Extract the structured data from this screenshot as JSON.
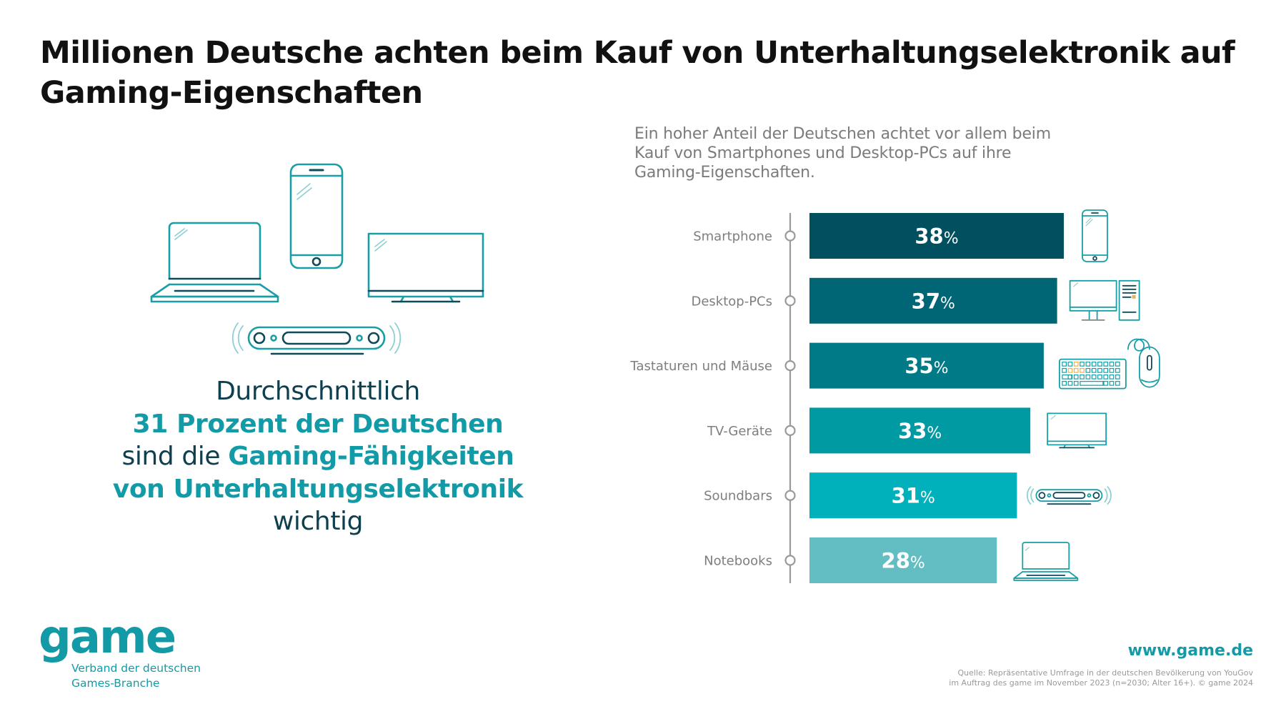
{
  "title": "Millionen Deutsche achten beim Kauf von Unterhaltungselektronik auf Gaming-Eigenschaften",
  "subtitle": "Ein hoher Anteil der Deutschen achtet vor allem beim Kauf von Smartphones und Desktop-PCs auf ihre Gaming-Eigenschaften.",
  "highlight": {
    "line1": "Durchschnittlich",
    "line2": "31 Prozent der Deutschen",
    "line3_plain": "sind die ",
    "line3_accent": "Gaming-Fähigkeiten",
    "line4": "von Unterhaltungselektronik",
    "line5": "wichtig"
  },
  "left_icons": [
    "laptop-icon",
    "smartphone-icon",
    "tv-icon",
    "soundbar-icon"
  ],
  "chart_data": {
    "type": "bar",
    "orientation": "horizontal",
    "title": "Ein hoher Anteil der Deutschen achtet vor allem beim Kauf von Smartphones und Desktop-PCs auf ihre Gaming-Eigenschaften.",
    "categories": [
      "Smartphone",
      "Desktop-PCs",
      "Tastaturen und Mäuse",
      "TV-Geräte",
      "Soundbars",
      "Notebooks"
    ],
    "values": [
      38,
      37,
      35,
      33,
      31,
      28
    ],
    "unit": "%",
    "xlabel": "",
    "ylabel": "",
    "xlim": [
      0,
      38
    ],
    "grid": false,
    "legend": "none",
    "colors": [
      "#00505f",
      "#006575",
      "#007a86",
      "#009aa3",
      "#00b1bb",
      "#62bec3"
    ],
    "icons": [
      "smartphone-icon",
      "desktop-pc-icon",
      "keyboard-mouse-icon",
      "tv-icon",
      "soundbar-icon",
      "notebook-icon"
    ]
  },
  "logo": {
    "word": "game",
    "sub1": "Verband der deutschen",
    "sub2": "Games-Branche"
  },
  "website": "www.game.de",
  "source": {
    "line1": "Quelle: Repräsentative Umfrage in der deutschen Bevölkerung von YouGov",
    "line2": "im Auftrag des game im November 2023 (n=2030;  Alter 16+). © game 2024"
  },
  "colors": {
    "accent": "#129ba6",
    "dark": "#0e3f4f",
    "icon_stroke": "#1a9ea6",
    "icon_dark": "#0e4a57",
    "orange": "#f2b24a"
  }
}
